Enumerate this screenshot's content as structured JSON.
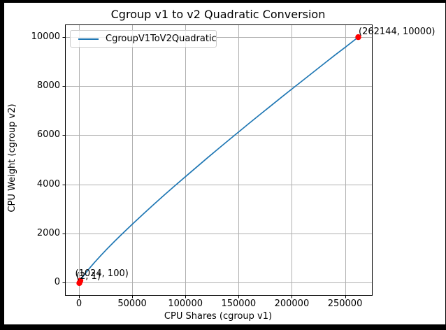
{
  "window": {
    "background_color": "#000000",
    "figure_background_color": "#ffffff"
  },
  "chart_data": {
    "type": "line",
    "title": "Cgroup v1 to v2 Quadratic Conversion",
    "xlabel": "CPU Shares (cgroup v1)",
    "ylabel": "CPU Weight (cgroup v2)",
    "x_ticks": [
      0,
      50000,
      100000,
      150000,
      200000,
      250000
    ],
    "y_ticks": [
      0,
      2000,
      4000,
      6000,
      8000,
      10000
    ],
    "xlim": [
      -13107,
      275251
    ],
    "ylim": [
      -500,
      10500
    ],
    "grid": true,
    "grid_color": "#b0b0b0",
    "legend_position": "upper left",
    "series": [
      {
        "name": "CgroupV1ToV2Quadratic",
        "color": "#1f77b4",
        "points": [
          [
            2,
            1
          ],
          [
            100,
            17
          ],
          [
            300,
            39
          ],
          [
            600,
            66
          ],
          [
            1024,
            100
          ],
          [
            1500,
            135
          ],
          [
            2000,
            170
          ],
          [
            3000,
            235
          ],
          [
            4000,
            297
          ],
          [
            5000,
            355
          ],
          [
            7000,
            467
          ],
          [
            10000,
            626
          ],
          [
            14000,
            826
          ],
          [
            20000,
            1112
          ],
          [
            26000,
            1384
          ],
          [
            33000,
            1691
          ],
          [
            40000,
            1989
          ],
          [
            50000,
            2402
          ],
          [
            60000,
            2805
          ],
          [
            70000,
            3198
          ],
          [
            80000,
            3585
          ],
          [
            90000,
            3964
          ],
          [
            100000,
            4339
          ],
          [
            110000,
            4708
          ],
          [
            120000,
            5077
          ],
          [
            130000,
            5440
          ],
          [
            140000,
            5798
          ],
          [
            150000,
            6155
          ],
          [
            160000,
            6508
          ],
          [
            170000,
            6861
          ],
          [
            180000,
            7208
          ],
          [
            190000,
            7556
          ],
          [
            200000,
            7899
          ],
          [
            210000,
            8241
          ],
          [
            220000,
            8581
          ],
          [
            230000,
            8923
          ],
          [
            240000,
            9260
          ],
          [
            250000,
            9594
          ],
          [
            262144,
            10000
          ]
        ]
      }
    ],
    "markers": [
      {
        "x": 2,
        "y": 1,
        "label": "(2, 1)",
        "label_offset": [
          -4,
          -16
        ]
      },
      {
        "x": 1024,
        "y": 100,
        "label": "(1024, 100)",
        "label_offset": [
          -7,
          -17
        ]
      },
      {
        "x": 262144,
        "y": 10000,
        "label": "(262144, 10000)",
        "label_offset": [
          1,
          -15
        ]
      }
    ],
    "marker_color": "#ff0000"
  }
}
